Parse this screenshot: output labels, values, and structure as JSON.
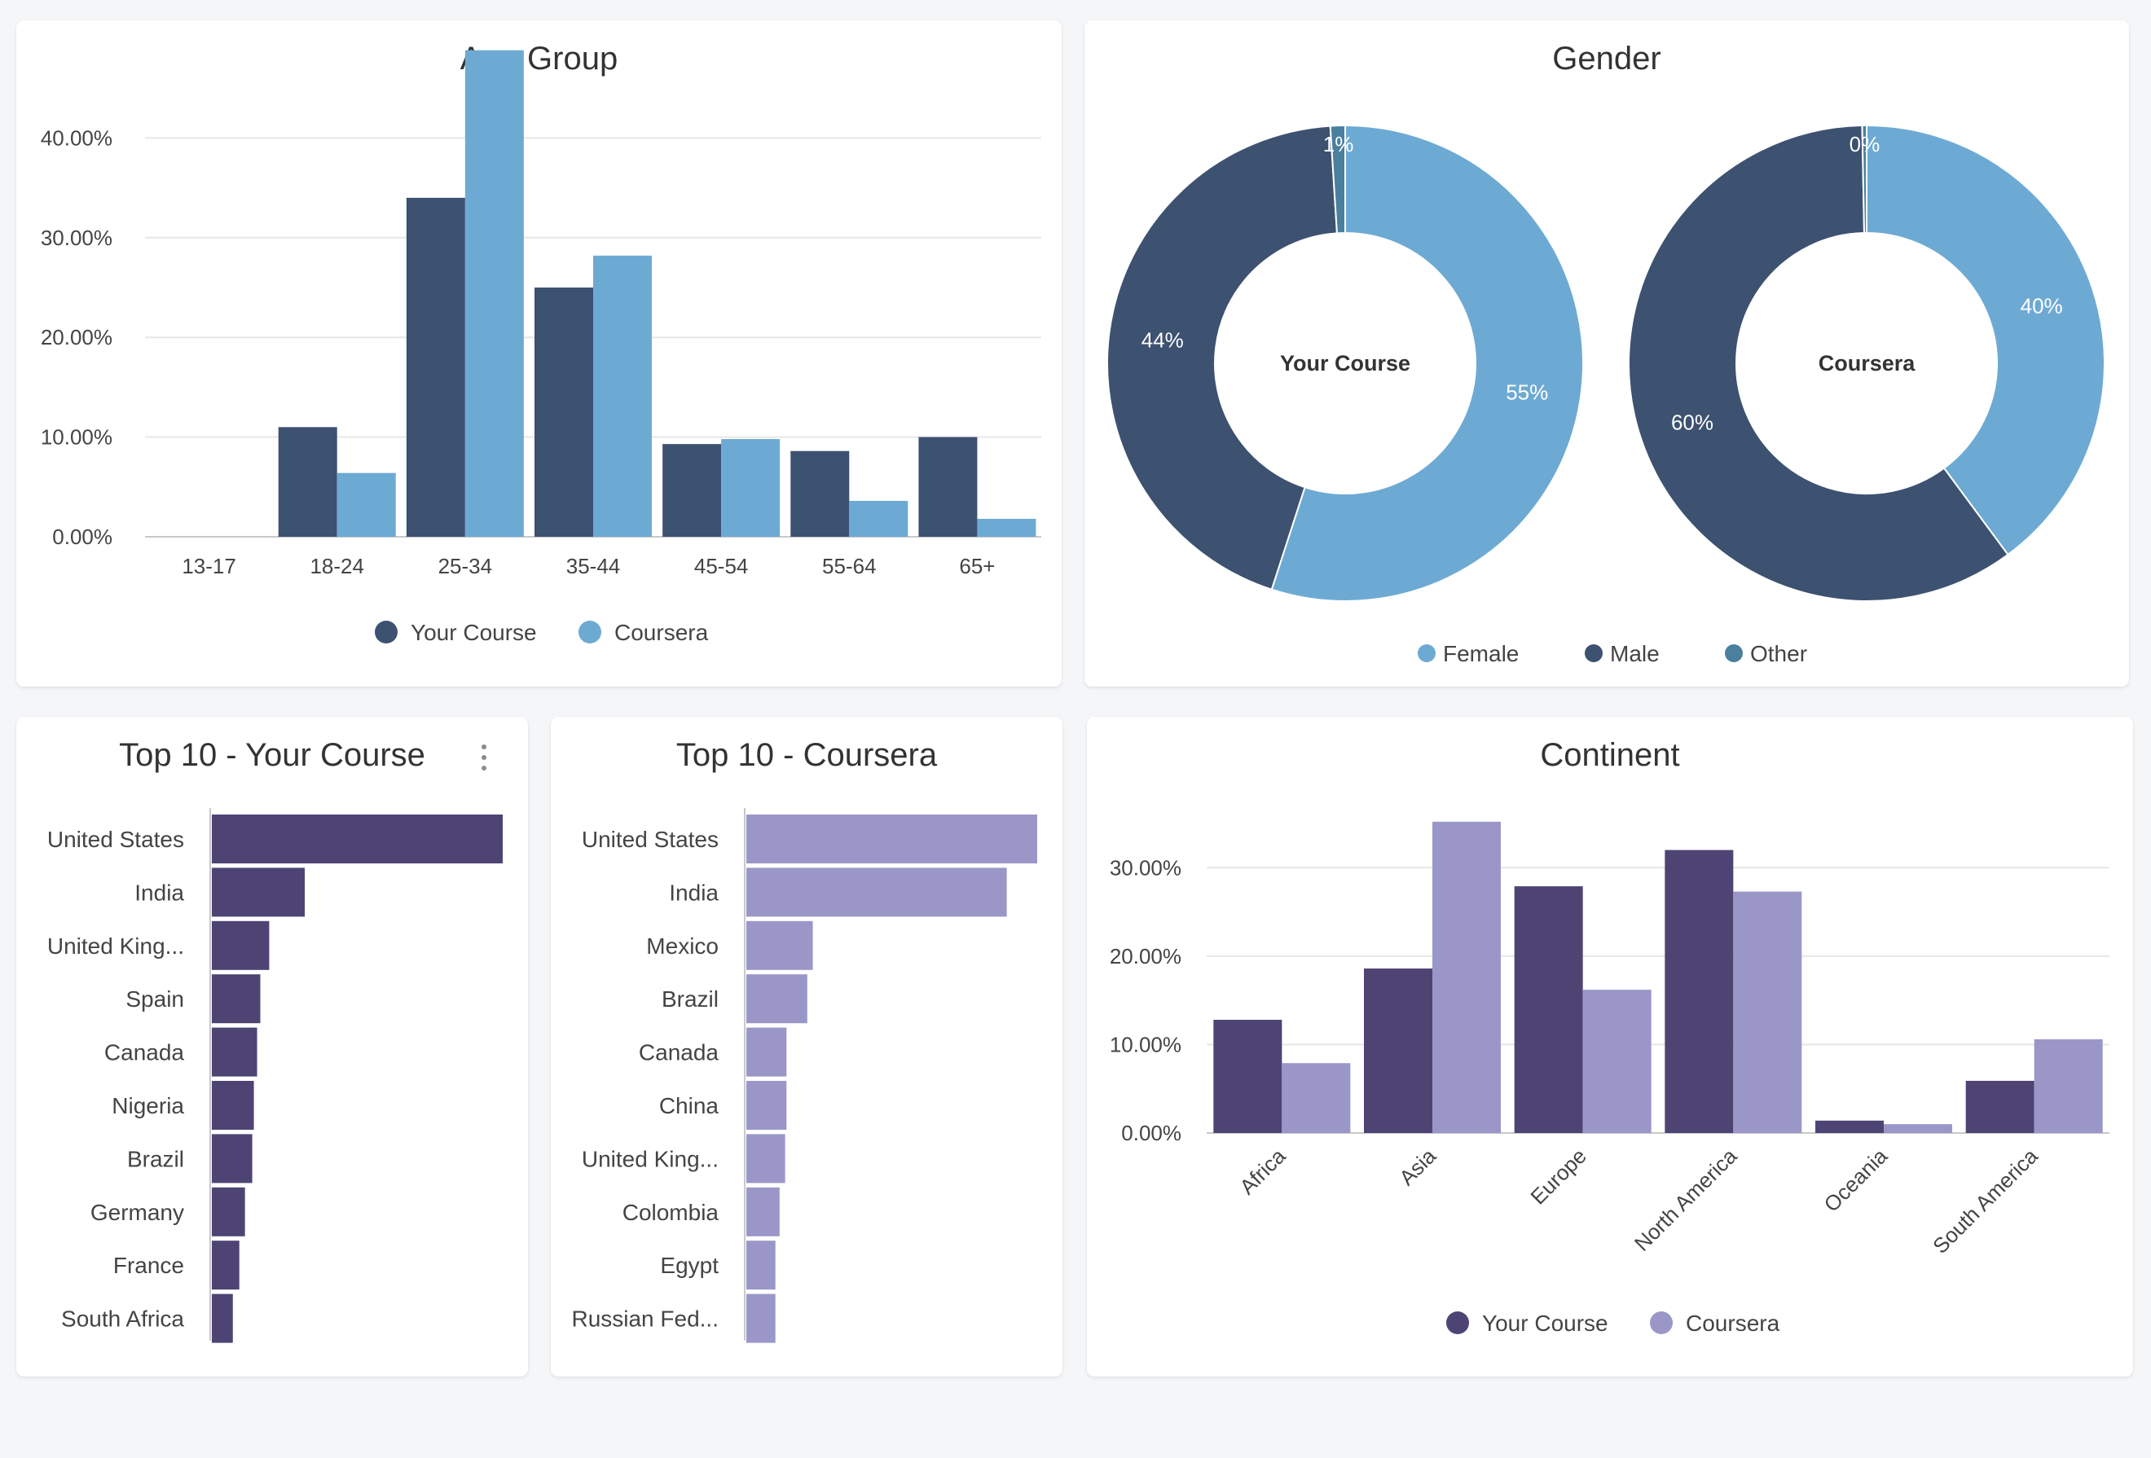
{
  "colors": {
    "dark_blue": "#3d5170",
    "light_blue": "#6daad3",
    "other_teal": "#4a7f9e",
    "dark_purple": "#4e4474",
    "light_purple": "#9a97c8"
  },
  "age_card": {
    "title": "Age Group"
  },
  "gender_card": {
    "title": "Gender"
  },
  "top10_course_card": {
    "title": "Top 10 - Your Course",
    "menu_icon": "more-vertical-icon"
  },
  "top10_coursera_card": {
    "title": "Top 10 - Coursera"
  },
  "continent_card": {
    "title": "Continent"
  },
  "chart_data": [
    {
      "type": "bar",
      "title": "Age Group",
      "categories": [
        "13-17",
        "18-24",
        "25-34",
        "35-44",
        "45-54",
        "55-64",
        "65+"
      ],
      "series": [
        {
          "name": "Your Course",
          "values": [
            0,
            11,
            34,
            25,
            9.3,
            8.6,
            10
          ]
        },
        {
          "name": "Coursera",
          "values": [
            0,
            6.4,
            48.8,
            28.2,
            9.8,
            3.6,
            1.8
          ]
        }
      ],
      "yticks": [
        "0.00%",
        "10.00%",
        "20.00%",
        "30.00%",
        "40.00%"
      ],
      "ylim": [
        0,
        50
      ],
      "grid": true,
      "legend": "bottom"
    },
    {
      "type": "pie",
      "title": "Gender",
      "legend": [
        "Female",
        "Male",
        "Other"
      ],
      "legend_position": "bottom",
      "donuts": [
        {
          "center_label": "Your Course",
          "slices": [
            {
              "name": "Female",
              "value": 55,
              "label": "55%"
            },
            {
              "name": "Male",
              "value": 44,
              "label": "44%"
            },
            {
              "name": "Other",
              "value": 1,
              "label": "1%"
            }
          ]
        },
        {
          "center_label": "Coursera",
          "slices": [
            {
              "name": "Female",
              "value": 40,
              "label": "40%"
            },
            {
              "name": "Male",
              "value": 60,
              "label": "60%"
            },
            {
              "name": "Other",
              "value": 0.3,
              "label": "0%"
            }
          ]
        }
      ]
    },
    {
      "type": "bar",
      "orientation": "horizontal",
      "title": "Top 10 - Your Course",
      "categories": [
        "United States",
        "India",
        "United King...",
        "Spain",
        "Canada",
        "Nigeria",
        "Brazil",
        "Germany",
        "France",
        "South Africa"
      ],
      "values": [
        36,
        11.5,
        7.1,
        6.0,
        5.6,
        5.2,
        5.0,
        4.1,
        3.4,
        2.6
      ],
      "xlim": [
        0,
        36
      ]
    },
    {
      "type": "bar",
      "orientation": "horizontal",
      "title": "Top 10 - Coursera",
      "categories": [
        "United States",
        "India",
        "Mexico",
        "Brazil",
        "Canada",
        "China",
        "United King...",
        "Colombia",
        "Egypt",
        "Russian Fed..."
      ],
      "values": [
        21,
        18.8,
        4.8,
        4.4,
        2.9,
        2.9,
        2.8,
        2.4,
        2.1,
        2.1
      ],
      "xlim": [
        0,
        21
      ]
    },
    {
      "type": "bar",
      "title": "Continent",
      "categories": [
        "Africa",
        "Asia",
        "Europe",
        "North America",
        "Oceania",
        "South America"
      ],
      "series": [
        {
          "name": "Your Course",
          "values": [
            12.8,
            18.6,
            27.9,
            32,
            1.4,
            5.9
          ]
        },
        {
          "name": "Coursera",
          "values": [
            7.9,
            35.2,
            16.2,
            27.3,
            1.0,
            10.6
          ]
        }
      ],
      "yticks": [
        "0.00%",
        "10.00%",
        "20.00%",
        "30.00%"
      ],
      "ylim": [
        0,
        35
      ],
      "grid": true,
      "legend": "bottom"
    }
  ]
}
